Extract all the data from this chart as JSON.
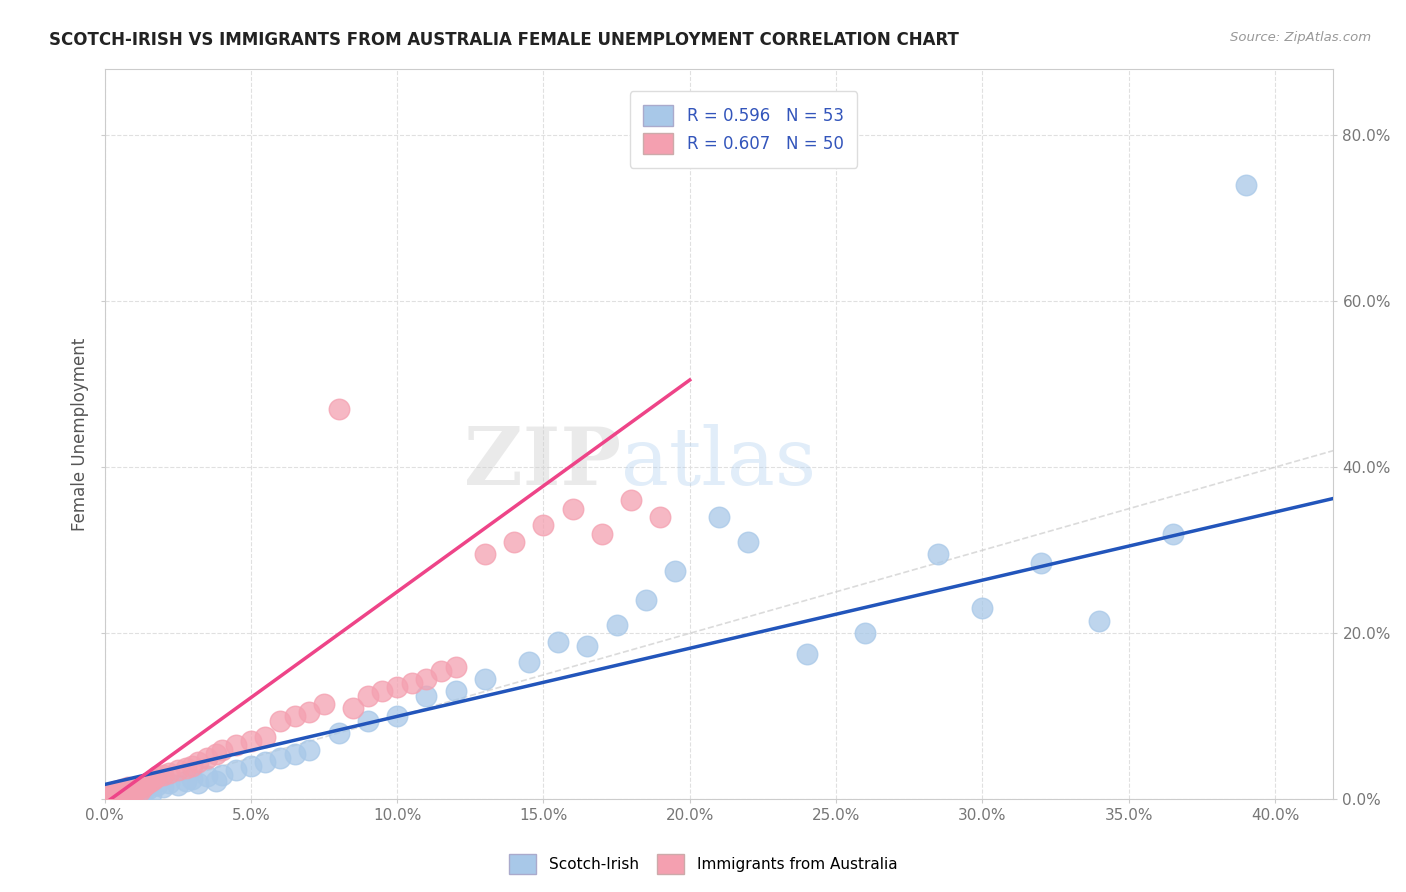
{
  "title": "SCOTCH-IRISH VS IMMIGRANTS FROM AUSTRALIA FEMALE UNEMPLOYMENT CORRELATION CHART",
  "source": "Source: ZipAtlas.com",
  "ylabel_label": "Female Unemployment",
  "xlim": [
    0.0,
    0.42
  ],
  "ylim": [
    0.0,
    0.88
  ],
  "xtick_vals": [
    0.0,
    0.05,
    0.1,
    0.15,
    0.2,
    0.25,
    0.3,
    0.35,
    0.4
  ],
  "xtick_labels": [
    "0.0%",
    "5.0%",
    "10.0%",
    "15.0%",
    "20.0%",
    "25.0%",
    "30.0%",
    "35.0%",
    "40.0%"
  ],
  "ytick_vals": [
    0.0,
    0.2,
    0.4,
    0.6,
    0.8
  ],
  "ytick_labels": [
    "0.0%",
    "20.0%",
    "40.0%",
    "60.0%",
    "80.0%"
  ],
  "blue_color": "#A8C8E8",
  "pink_color": "#F4A0B0",
  "blue_line_color": "#2255BB",
  "pink_line_color": "#EE4488",
  "diag_color": "#CCCCCC",
  "R_blue": 0.596,
  "N_blue": 53,
  "R_pink": 0.607,
  "N_pink": 50,
  "blue_scatter_x": [
    0.001,
    0.002,
    0.003,
    0.004,
    0.005,
    0.006,
    0.007,
    0.008,
    0.009,
    0.01,
    0.012,
    0.013,
    0.014,
    0.015,
    0.016,
    0.018,
    0.02,
    0.022,
    0.025,
    0.028,
    0.03,
    0.032,
    0.035,
    0.038,
    0.04,
    0.045,
    0.05,
    0.055,
    0.06,
    0.065,
    0.07,
    0.08,
    0.09,
    0.1,
    0.11,
    0.12,
    0.13,
    0.145,
    0.155,
    0.165,
    0.175,
    0.185,
    0.195,
    0.21,
    0.22,
    0.24,
    0.26,
    0.285,
    0.3,
    0.32,
    0.34,
    0.365,
    0.39
  ],
  "blue_scatter_y": [
    0.005,
    0.008,
    0.003,
    0.01,
    0.006,
    0.004,
    0.007,
    0.012,
    0.009,
    0.005,
    0.01,
    0.008,
    0.015,
    0.012,
    0.007,
    0.018,
    0.015,
    0.02,
    0.018,
    0.022,
    0.025,
    0.02,
    0.028,
    0.022,
    0.03,
    0.035,
    0.04,
    0.045,
    0.05,
    0.055,
    0.06,
    0.08,
    0.095,
    0.1,
    0.125,
    0.13,
    0.145,
    0.165,
    0.19,
    0.185,
    0.21,
    0.24,
    0.275,
    0.34,
    0.31,
    0.175,
    0.2,
    0.295,
    0.23,
    0.285,
    0.215,
    0.32,
    0.74
  ],
  "pink_scatter_x": [
    0.001,
    0.002,
    0.003,
    0.004,
    0.005,
    0.006,
    0.007,
    0.008,
    0.009,
    0.01,
    0.011,
    0.012,
    0.013,
    0.014,
    0.015,
    0.016,
    0.017,
    0.018,
    0.02,
    0.022,
    0.025,
    0.028,
    0.03,
    0.032,
    0.035,
    0.038,
    0.04,
    0.045,
    0.05,
    0.055,
    0.06,
    0.065,
    0.07,
    0.075,
    0.08,
    0.085,
    0.09,
    0.095,
    0.1,
    0.105,
    0.11,
    0.115,
    0.12,
    0.13,
    0.14,
    0.15,
    0.16,
    0.17,
    0.18,
    0.19
  ],
  "pink_scatter_y": [
    0.005,
    0.008,
    0.003,
    0.01,
    0.006,
    0.012,
    0.007,
    0.015,
    0.009,
    0.008,
    0.012,
    0.01,
    0.015,
    0.018,
    0.02,
    0.022,
    0.025,
    0.028,
    0.03,
    0.032,
    0.035,
    0.038,
    0.04,
    0.045,
    0.05,
    0.055,
    0.06,
    0.065,
    0.07,
    0.075,
    0.095,
    0.1,
    0.105,
    0.115,
    0.47,
    0.11,
    0.125,
    0.13,
    0.135,
    0.14,
    0.145,
    0.155,
    0.16,
    0.295,
    0.31,
    0.33,
    0.35,
    0.32,
    0.36,
    0.34
  ],
  "watermark_zip": "ZIP",
  "watermark_atlas": "atlas",
  "background_color": "#FFFFFF",
  "grid_color": "#E0E0E0",
  "legend_text_color": "#3355BB",
  "title_color": "#222222",
  "axis_label_color": "#555555",
  "tick_color": "#777777",
  "blue_line_intercept": 0.018,
  "blue_line_slope": 0.82,
  "pink_line_intercept": -0.005,
  "pink_line_slope": 2.55
}
